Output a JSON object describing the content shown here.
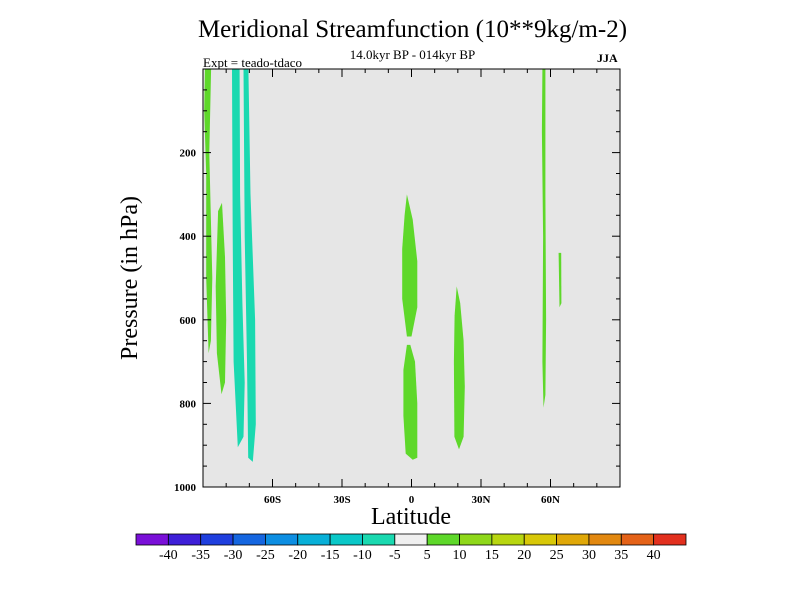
{
  "chart_data": {
    "type": "heatmap",
    "title": "Meridional Streamfunction (10**9kg/m-2)",
    "subtitle": "14.0kyr BP - 014kyr BP",
    "left_label": "Expt = teado-tdaco",
    "right_label": "JJA",
    "xlabel": "Latitude",
    "ylabel": "Pressure (in hPa)",
    "xlim": [
      -90,
      90
    ],
    "ylim": [
      1000,
      0
    ],
    "x_ticks": [
      {
        "value": -60,
        "label": "60S"
      },
      {
        "value": -30,
        "label": "30S"
      },
      {
        "value": 0,
        "label": "0"
      },
      {
        "value": 30,
        "label": "30N"
      },
      {
        "value": 60,
        "label": "60N"
      }
    ],
    "y_ticks": [
      {
        "value": 200,
        "label": "200"
      },
      {
        "value": 400,
        "label": "400"
      },
      {
        "value": 600,
        "label": "600"
      },
      {
        "value": 800,
        "label": "800"
      },
      {
        "value": 1000,
        "label": "1000"
      }
    ],
    "background_color": "#e6e6e6",
    "colorbar": {
      "labels": [
        "-40",
        "-35",
        "-30",
        "-25",
        "-20",
        "-15",
        "-10",
        "-5",
        "5",
        "10",
        "15",
        "20",
        "25",
        "30",
        "35",
        "40"
      ],
      "colors": [
        "#7a10d8",
        "#3e1fd8",
        "#1f3fde",
        "#1566e0",
        "#0d8ee2",
        "#08b0d8",
        "#0ac8c8",
        "#1ad9b0",
        "#f0f0f0",
        "#5ed82a",
        "#8fd81a",
        "#b8d610",
        "#d8c808",
        "#e0a808",
        "#e28810",
        "#e46218",
        "#e2301e"
      ]
    },
    "regions": [
      {
        "name": "band-65s-upper",
        "color": "#5ed82a",
        "value": 10,
        "points": [
          [
            -89.2,
            0
          ],
          [
            -86.5,
            0
          ],
          [
            -87.3,
            200
          ],
          [
            -86.0,
            500
          ],
          [
            -86.6,
            650
          ],
          [
            -87.6,
            680
          ],
          [
            -88.6,
            500
          ],
          [
            -88.6,
            250
          ],
          [
            -89.5,
            100
          ]
        ]
      },
      {
        "name": "band-65s-lower",
        "color": "#5ed82a",
        "value": 10,
        "points": [
          [
            -83.5,
            340
          ],
          [
            -81.8,
            320
          ],
          [
            -80.5,
            450
          ],
          [
            -80.0,
            600
          ],
          [
            -80.5,
            750
          ],
          [
            -82.0,
            778
          ],
          [
            -84.0,
            680
          ],
          [
            -84.5,
            520
          ]
        ]
      },
      {
        "name": "band-68s-left",
        "color": "#1ad9b0",
        "value": -10,
        "points": [
          [
            -77.5,
            0
          ],
          [
            -74.2,
            0
          ],
          [
            -74.0,
            300
          ],
          [
            -73.0,
            560
          ],
          [
            -72.0,
            750
          ],
          [
            -72.5,
            880
          ],
          [
            -75.0,
            905
          ],
          [
            -76.8,
            700
          ],
          [
            -77.2,
            400
          ]
        ]
      },
      {
        "name": "band-68s-right",
        "color": "#1ad9b0",
        "value": -10,
        "points": [
          [
            -72.5,
            0
          ],
          [
            -70.4,
            0
          ],
          [
            -69.5,
            300
          ],
          [
            -67.5,
            600
          ],
          [
            -67.2,
            850
          ],
          [
            -68.5,
            940
          ],
          [
            -70.5,
            930
          ],
          [
            -71.0,
            700
          ],
          [
            -72.0,
            400
          ]
        ]
      },
      {
        "name": "band-eq-upper",
        "color": "#5ed82a",
        "value": 10,
        "points": [
          [
            -3.0,
            350
          ],
          [
            -2.0,
            300
          ],
          [
            0.5,
            360
          ],
          [
            2.5,
            460
          ],
          [
            2.5,
            570
          ],
          [
            0.0,
            640
          ],
          [
            -2.0,
            640
          ],
          [
            -4.0,
            550
          ],
          [
            -4.0,
            430
          ]
        ]
      },
      {
        "name": "band-eq-lower",
        "color": "#5ed82a",
        "value": 10,
        "points": [
          [
            -2.0,
            660
          ],
          [
            -0.5,
            660
          ],
          [
            1.5,
            700
          ],
          [
            2.5,
            800
          ],
          [
            2.5,
            930
          ],
          [
            0.5,
            935
          ],
          [
            -2.5,
            920
          ],
          [
            -3.5,
            830
          ],
          [
            -3.5,
            720
          ]
        ]
      },
      {
        "name": "band-20n",
        "color": "#5ed82a",
        "value": 10,
        "points": [
          [
            19.5,
            520
          ],
          [
            21.0,
            560
          ],
          [
            22.5,
            650
          ],
          [
            23.0,
            760
          ],
          [
            22.5,
            880
          ],
          [
            20.5,
            910
          ],
          [
            18.5,
            880
          ],
          [
            18.3,
            700
          ],
          [
            18.6,
            590
          ]
        ]
      },
      {
        "name": "band-57n",
        "color": "#5ed82a",
        "value": 10,
        "points": [
          [
            56.5,
            0
          ],
          [
            57.8,
            0
          ],
          [
            57.8,
            300
          ],
          [
            58.1,
            600
          ],
          [
            57.8,
            780
          ],
          [
            57.0,
            810
          ],
          [
            56.5,
            700
          ],
          [
            56.8,
            400
          ],
          [
            56.3,
            150
          ]
        ]
      },
      {
        "name": "band-64n",
        "color": "#5ed82a",
        "value": 10,
        "points": [
          [
            63.5,
            440
          ],
          [
            64.6,
            440
          ],
          [
            64.7,
            560
          ],
          [
            63.9,
            570
          ]
        ]
      }
    ]
  }
}
